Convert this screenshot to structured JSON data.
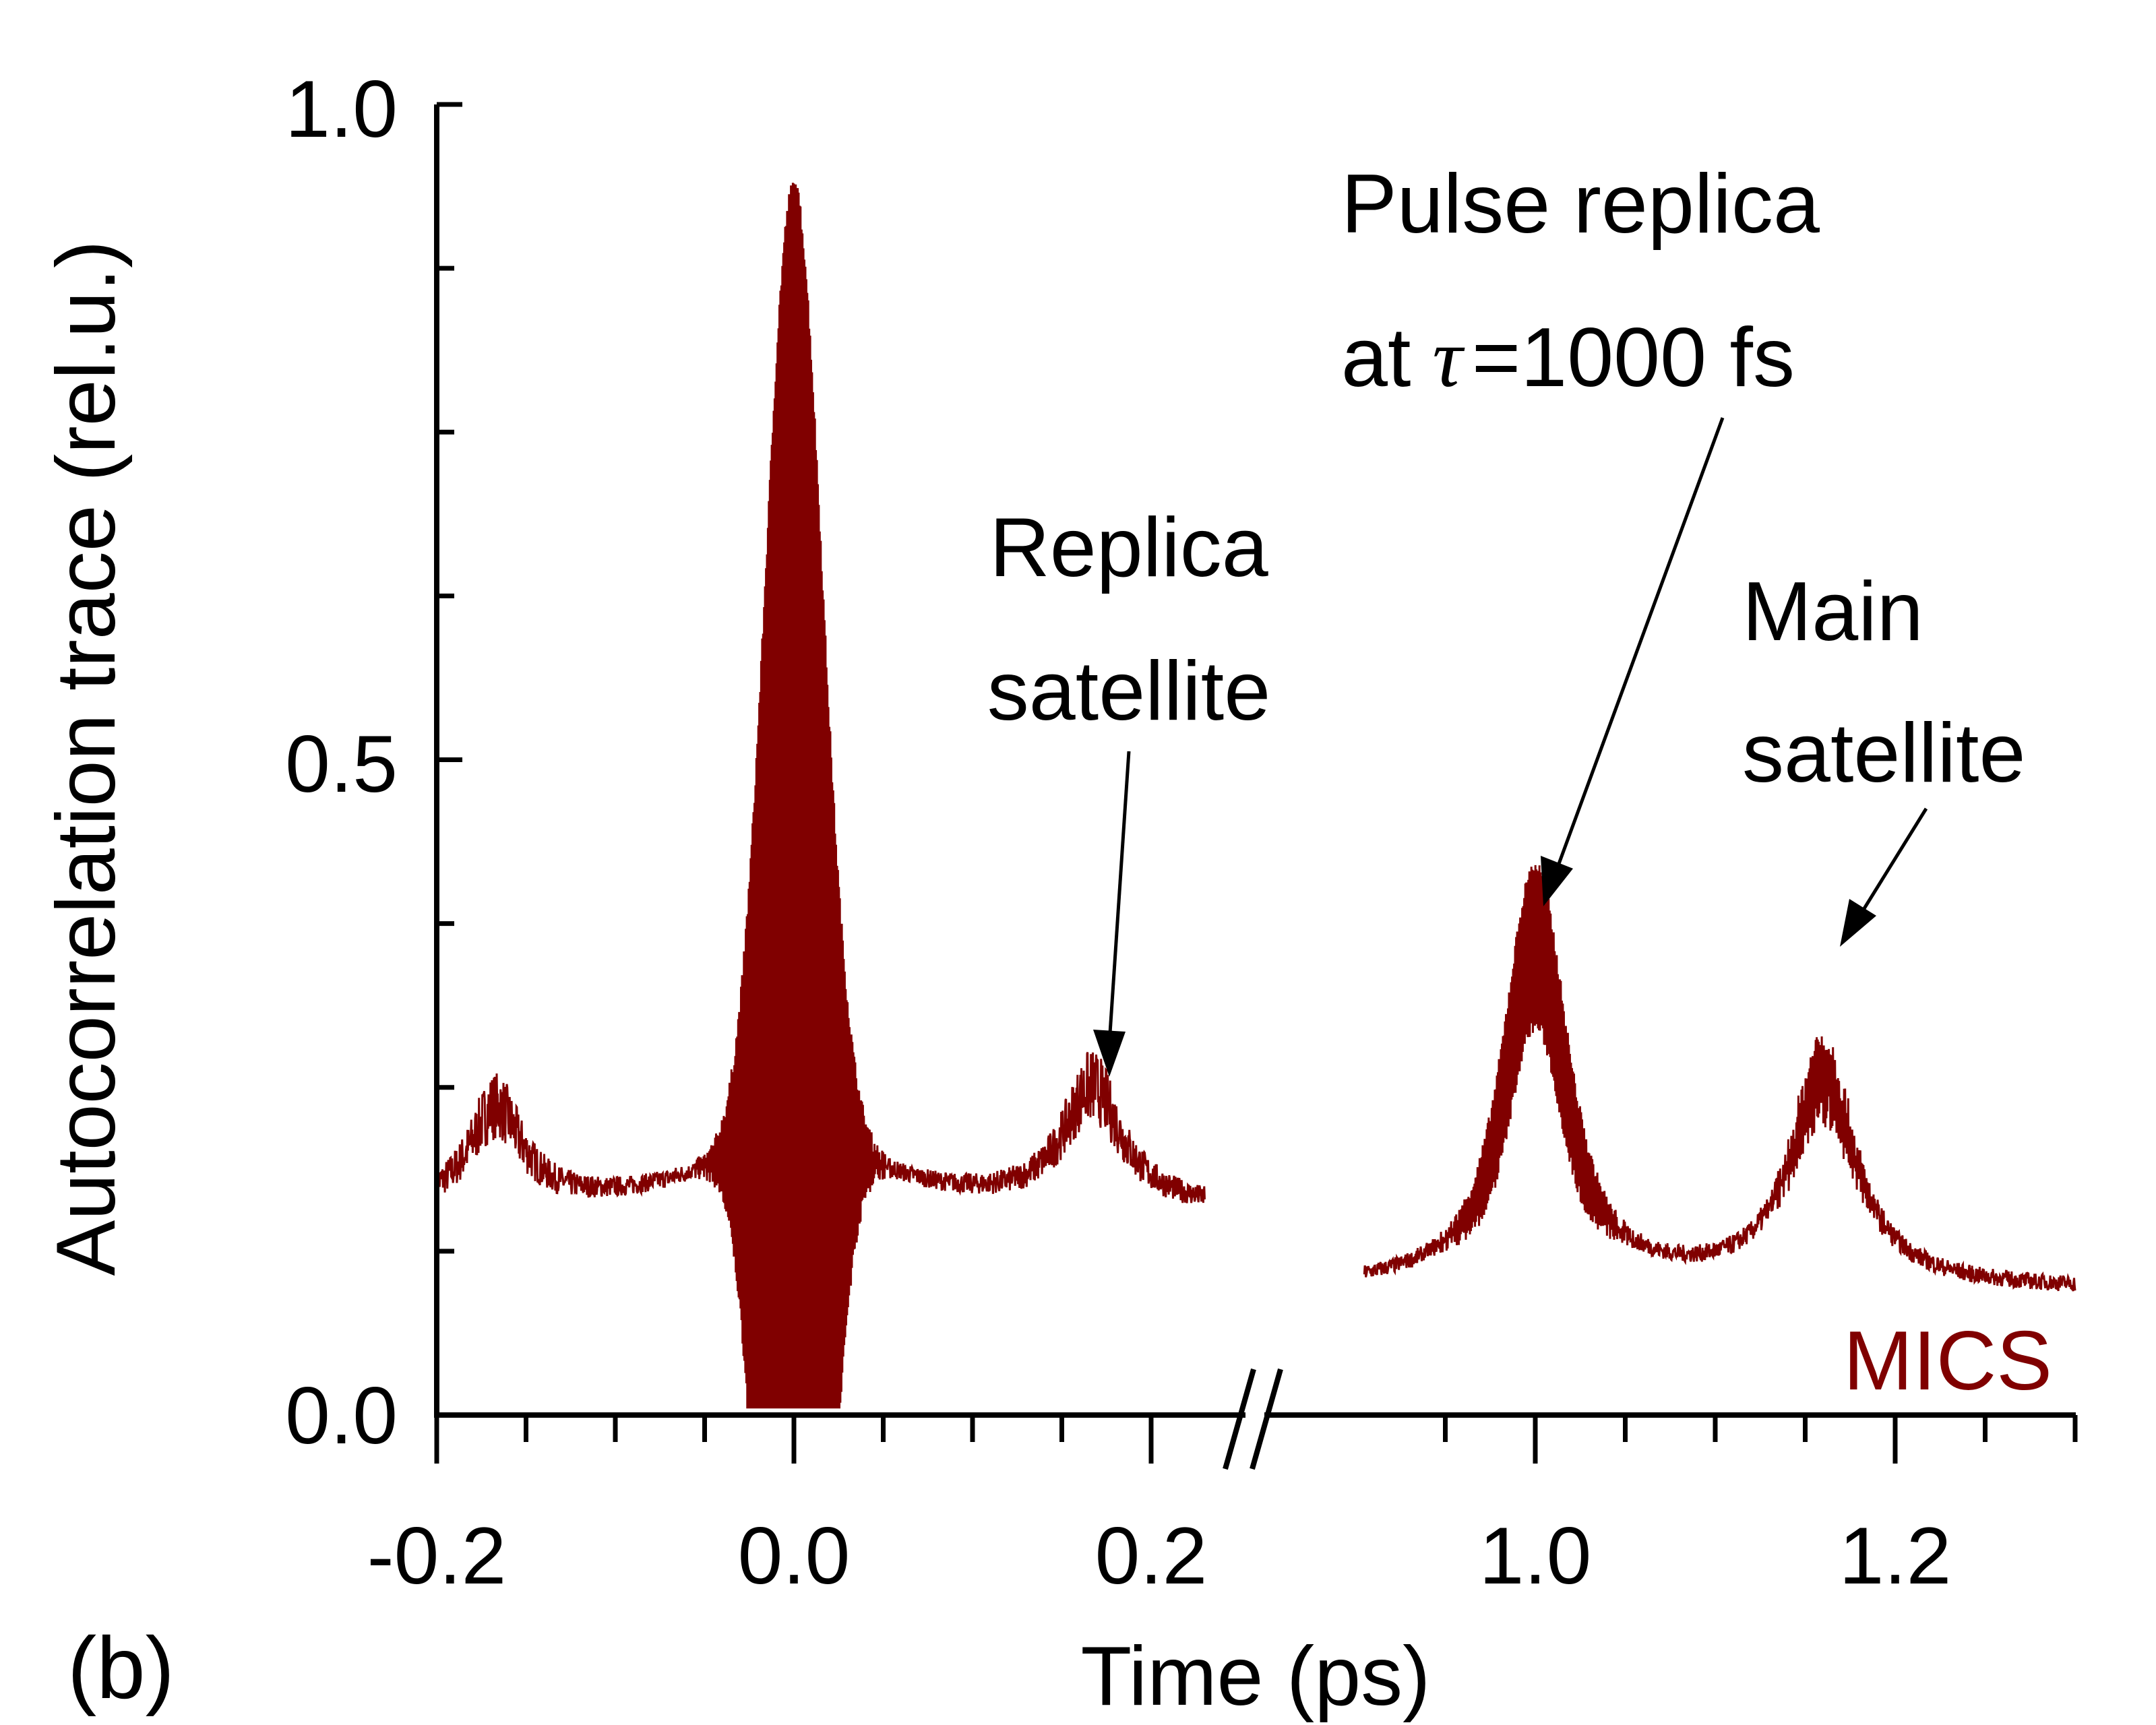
{
  "chart_data": {
    "type": "line",
    "title": "",
    "panel_label": "(b)",
    "xlabel": "Time (ps)",
    "ylabel": "Autocorrelation trace (rel.u.)",
    "ylim": [
      0,
      1.0
    ],
    "y_ticks": [
      "0.0",
      "0.5",
      "1.0"
    ],
    "x_axis_break": {
      "left_segment": [
        -0.2,
        0.23
      ],
      "right_segment": [
        0.9,
        1.3
      ]
    },
    "x_ticks": [
      "-0.2",
      "0.0",
      "0.2",
      "1.0",
      "1.2"
    ],
    "legend": {
      "label": "MICS",
      "placement": "bottom-right"
    },
    "series": [
      {
        "name": "MICS",
        "color": "#800000",
        "description_points": {
          "x": [
            -0.2,
            -0.17,
            -0.13,
            -0.08,
            -0.04,
            -0.02,
            0.0,
            0.02,
            0.04,
            0.08,
            0.13,
            0.17,
            0.2,
            0.23,
            0.9,
            0.95,
            1.0,
            1.05,
            1.1,
            1.15,
            1.16,
            1.2,
            1.25,
            1.3
          ],
          "y": [
            0.15,
            0.22,
            0.15,
            0.15,
            0.19,
            0.22,
            0.96,
            0.22,
            0.2,
            0.15,
            0.15,
            0.25,
            0.15,
            0.13,
            0.1,
            0.13,
            0.39,
            0.15,
            0.13,
            0.16,
            0.32,
            0.15,
            0.12,
            0.12
          ]
        }
      }
    ],
    "annotations": [
      {
        "lines": [
          "Replica",
          "satellite"
        ],
        "target_x": 0.17,
        "target_y": 0.25
      },
      {
        "lines": [
          "Pulse replica",
          "at"
        ],
        "tau_symbol": "τ",
        "tau_value": "=1000 fs",
        "target_x": 1.0,
        "target_y": 0.39
      },
      {
        "lines": [
          "Main",
          "satellite"
        ],
        "target_x": 1.16,
        "target_y": 0.32
      }
    ]
  }
}
